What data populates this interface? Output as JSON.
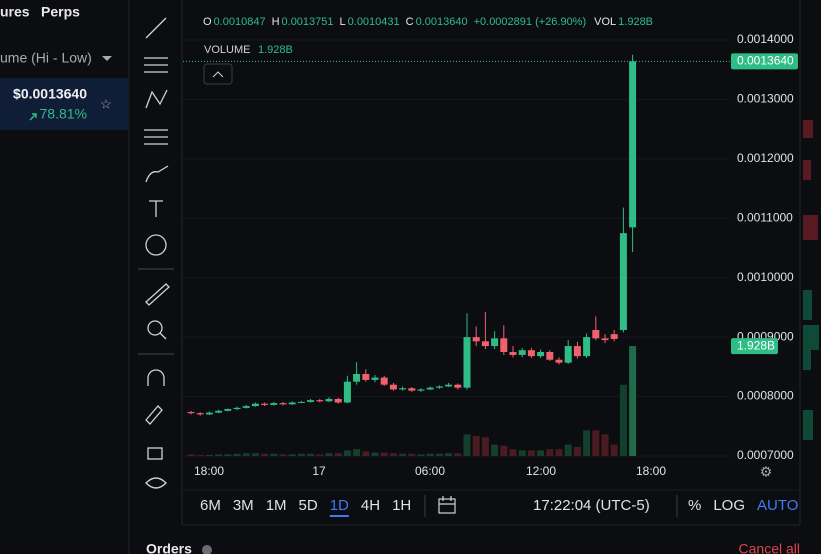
{
  "nav": [
    "ures",
    "Perps"
  ],
  "sort_label": "ume (Hi - Low)",
  "ticker": {
    "price": "$0.0013640",
    "change": "78.81%"
  },
  "legend": [
    {
      "key": "O",
      "value": "0.0010847"
    },
    {
      "key": "H",
      "value": "0.0013751"
    },
    {
      "key": "L",
      "value": "0.0010431"
    },
    {
      "key": "C",
      "value": "0.0013640"
    }
  ],
  "legend_change": "+0.0002891 (+26.90%)",
  "vol_key": "VOL",
  "volume_key": "VOLUME",
  "volume_value": "1.928B",
  "chart": {
    "yticks": [
      {
        "value": 0.0014,
        "label": "0.0014000"
      },
      {
        "value": 0.0013,
        "label": "0.0013000"
      },
      {
        "value": 0.0012,
        "label": "0.0012000"
      },
      {
        "value": 0.0011,
        "label": "0.0011000"
      },
      {
        "value": 0.001,
        "label": "0.0010000"
      },
      {
        "value": 0.0009,
        "label": "0.0009000"
      },
      {
        "value": 0.0008,
        "label": "0.0008000"
      },
      {
        "value": 0.0007,
        "label": "0.0007000"
      }
    ],
    "xlabels": [
      "18:00",
      "17",
      "06:00",
      "12:00",
      "18:00"
    ],
    "last_price": {
      "value": 0.001364,
      "label": "0.0013640"
    },
    "candles": [
      {
        "o": 0.000774,
        "h": 0.000776,
        "l": 0.00077,
        "c": 0.000772,
        "v": 0.03
      },
      {
        "o": 0.000772,
        "h": 0.000774,
        "l": 0.000768,
        "c": 0.00077,
        "v": 0.02
      },
      {
        "o": 0.00077,
        "h": 0.000775,
        "l": 0.000769,
        "c": 0.000773,
        "v": 0.02
      },
      {
        "o": 0.000773,
        "h": 0.000778,
        "l": 0.000772,
        "c": 0.000776,
        "v": 0.03
      },
      {
        "o": 0.000776,
        "h": 0.00078,
        "l": 0.000775,
        "c": 0.000779,
        "v": 0.03
      },
      {
        "o": 0.000779,
        "h": 0.000783,
        "l": 0.000777,
        "c": 0.000781,
        "v": 0.04
      },
      {
        "o": 0.000781,
        "h": 0.000786,
        "l": 0.00078,
        "c": 0.000784,
        "v": 0.05
      },
      {
        "o": 0.000784,
        "h": 0.00079,
        "l": 0.000783,
        "c": 0.000788,
        "v": 0.05
      },
      {
        "o": 0.000788,
        "h": 0.00079,
        "l": 0.000784,
        "c": 0.000786,
        "v": 0.04
      },
      {
        "o": 0.000786,
        "h": 0.000791,
        "l": 0.000785,
        "c": 0.000789,
        "v": 0.04
      },
      {
        "o": 0.000789,
        "h": 0.000791,
        "l": 0.000785,
        "c": 0.000787,
        "v": 0.03
      },
      {
        "o": 0.000787,
        "h": 0.000792,
        "l": 0.000786,
        "c": 0.00079,
        "v": 0.03
      },
      {
        "o": 0.00079,
        "h": 0.000793,
        "l": 0.000789,
        "c": 0.000791,
        "v": 0.04
      },
      {
        "o": 0.000791,
        "h": 0.000796,
        "l": 0.00079,
        "c": 0.000794,
        "v": 0.04
      },
      {
        "o": 0.000794,
        "h": 0.000796,
        "l": 0.00079,
        "c": 0.000792,
        "v": 0.03
      },
      {
        "o": 0.000792,
        "h": 0.000799,
        "l": 0.000791,
        "c": 0.000796,
        "v": 0.05
      },
      {
        "o": 0.000796,
        "h": 0.000798,
        "l": 0.000788,
        "c": 0.00079,
        "v": 0.05
      },
      {
        "o": 0.00079,
        "h": 0.000835,
        "l": 0.000789,
        "c": 0.000825,
        "v": 0.1
      },
      {
        "o": 0.000825,
        "h": 0.000858,
        "l": 0.00082,
        "c": 0.000838,
        "v": 0.12
      },
      {
        "o": 0.000838,
        "h": 0.000846,
        "l": 0.000825,
        "c": 0.000828,
        "v": 0.08
      },
      {
        "o": 0.000828,
        "h": 0.000836,
        "l": 0.000824,
        "c": 0.000832,
        "v": 0.06
      },
      {
        "o": 0.000832,
        "h": 0.000835,
        "l": 0.000818,
        "c": 0.00082,
        "v": 0.06
      },
      {
        "o": 0.00082,
        "h": 0.000823,
        "l": 0.00081,
        "c": 0.000812,
        "v": 0.05
      },
      {
        "o": 0.000812,
        "h": 0.000817,
        "l": 0.00081,
        "c": 0.000814,
        "v": 0.04
      },
      {
        "o": 0.000814,
        "h": 0.000816,
        "l": 0.000808,
        "c": 0.00081,
        "v": 0.04
      },
      {
        "o": 0.00081,
        "h": 0.000814,
        "l": 0.000808,
        "c": 0.000812,
        "v": 0.03
      },
      {
        "o": 0.000812,
        "h": 0.000817,
        "l": 0.000811,
        "c": 0.000815,
        "v": 0.04
      },
      {
        "o": 0.000815,
        "h": 0.000819,
        "l": 0.000813,
        "c": 0.000817,
        "v": 0.04
      },
      {
        "o": 0.000817,
        "h": 0.000823,
        "l": 0.000816,
        "c": 0.00082,
        "v": 0.05
      },
      {
        "o": 0.00082,
        "h": 0.000822,
        "l": 0.000812,
        "c": 0.000815,
        "v": 0.05
      },
      {
        "o": 0.000815,
        "h": 0.00094,
        "l": 0.000812,
        "c": 0.0009,
        "v": 0.38
      },
      {
        "o": 0.0009,
        "h": 0.000918,
        "l": 0.000885,
        "c": 0.000893,
        "v": 0.35
      },
      {
        "o": 0.000893,
        "h": 0.000942,
        "l": 0.00088,
        "c": 0.000885,
        "v": 0.33
      },
      {
        "o": 0.000885,
        "h": 0.00091,
        "l": 0.00088,
        "c": 0.000898,
        "v": 0.2
      },
      {
        "o": 0.000898,
        "h": 0.00092,
        "l": 0.00087,
        "c": 0.000875,
        "v": 0.18
      },
      {
        "o": 0.000875,
        "h": 0.000885,
        "l": 0.000866,
        "c": 0.00087,
        "v": 0.12
      },
      {
        "o": 0.00087,
        "h": 0.000882,
        "l": 0.000866,
        "c": 0.000878,
        "v": 0.1
      },
      {
        "o": 0.000878,
        "h": 0.000882,
        "l": 0.000865,
        "c": 0.000868,
        "v": 0.1
      },
      {
        "o": 0.000868,
        "h": 0.000879,
        "l": 0.000865,
        "c": 0.000875,
        "v": 0.1
      },
      {
        "o": 0.000875,
        "h": 0.000878,
        "l": 0.00086,
        "c": 0.000862,
        "v": 0.12
      },
      {
        "o": 0.000862,
        "h": 0.000866,
        "l": 0.000854,
        "c": 0.000857,
        "v": 0.12
      },
      {
        "o": 0.000857,
        "h": 0.000895,
        "l": 0.000855,
        "c": 0.000885,
        "v": 0.2
      },
      {
        "o": 0.000885,
        "h": 0.000892,
        "l": 0.000864,
        "c": 0.000868,
        "v": 0.16
      },
      {
        "o": 0.000868,
        "h": 0.000906,
        "l": 0.000865,
        "c": 0.0009,
        "v": 0.45
      },
      {
        "o": 0.000912,
        "h": 0.000935,
        "l": 0.000895,
        "c": 0.000898,
        "v": 0.45
      },
      {
        "o": 0.000898,
        "h": 0.000905,
        "l": 0.00089,
        "c": 0.000895,
        "v": 0.38
      },
      {
        "o": 0.000905,
        "h": 0.000912,
        "l": 0.000893,
        "c": 0.000897,
        "v": 0.2
      },
      {
        "o": 0.000912,
        "h": 0.001118,
        "l": 0.000908,
        "c": 0.001075,
        "v": 1.25
      },
      {
        "o": 0.0010847,
        "h": 0.0013751,
        "l": 0.0010431,
        "c": 0.001364,
        "v": 1.928
      }
    ]
  },
  "timeframes": [
    "6M",
    "3M",
    "1M",
    "5D",
    "1D",
    "4H",
    "1H"
  ],
  "active_timeframe": "1D",
  "clock": "17:22:04 (UTC-5)",
  "scale_options": [
    "%",
    "LOG",
    "AUTO"
  ],
  "orders_title": "Orders",
  "cancel_all": "Cancel all"
}
